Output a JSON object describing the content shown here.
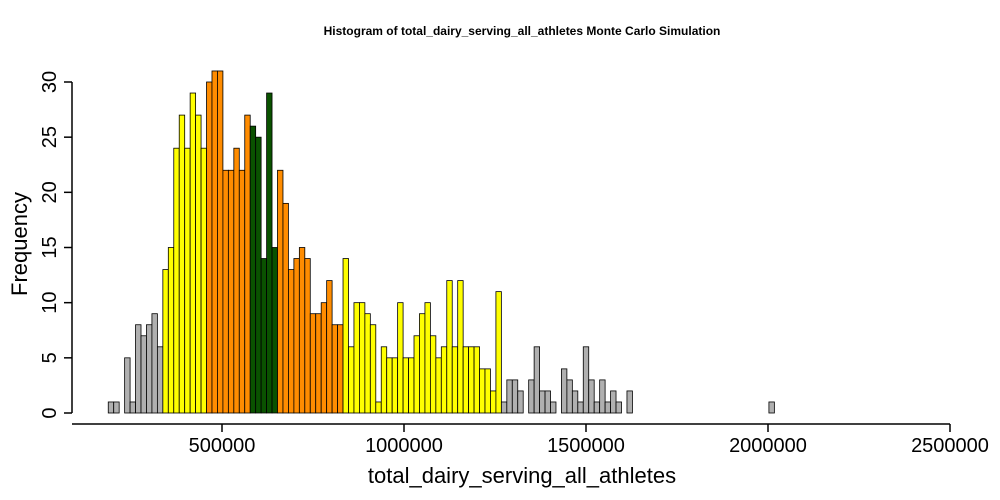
{
  "chart_data": {
    "type": "bar",
    "title": "Histogram of  total_dairy_serving_all_athletes  Monte Carlo Simulation",
    "xlabel": "total_dairy_serving_all_athletes",
    "ylabel": "Frequency",
    "xlim": [
      175000,
      2460000
    ],
    "ylim": [
      0,
      30
    ],
    "x_ticks": [
      500000,
      1000000,
      1500000,
      2000000,
      2500000
    ],
    "x_tick_labels": [
      "500000",
      "1000000",
      "1500000",
      "2000000",
      "2500000"
    ],
    "y_ticks": [
      0,
      5,
      10,
      15,
      20,
      25,
      30
    ],
    "y_tick_labels": [
      "0",
      "5",
      "10",
      "15",
      "20",
      "25",
      "30"
    ],
    "bin_start": 187500,
    "bin_width": 15000,
    "values": [
      1,
      1,
      0,
      5,
      1,
      8,
      7,
      8,
      9,
      6,
      13,
      15,
      24,
      27,
      24,
      29,
      27,
      24,
      30,
      31,
      31,
      22,
      22,
      24,
      22,
      27,
      26,
      25,
      14,
      29,
      15,
      22,
      19,
      13,
      14,
      15,
      14,
      9,
      9,
      10,
      12,
      8,
      8,
      14,
      6,
      10,
      10,
      9,
      8,
      1,
      6,
      5,
      5,
      10,
      5,
      5,
      7,
      9,
      10,
      7,
      5,
      6,
      12,
      6,
      12,
      6,
      6,
      6,
      4,
      4,
      2,
      11,
      1,
      3,
      3,
      2,
      0,
      3,
      6,
      2,
      2,
      1,
      0,
      4,
      3,
      2,
      1,
      6,
      3,
      1,
      3,
      1,
      2,
      1,
      0,
      2,
      0,
      0,
      0,
      0,
      0,
      0,
      0,
      0,
      0,
      0,
      0,
      0,
      0,
      0,
      0,
      0,
      0,
      0,
      0,
      0,
      0,
      0,
      0,
      0,
      0,
      1
    ],
    "colors": {
      "gray": "#b0b0b0",
      "yellow": "#ffff00",
      "orange": "#ff8c00",
      "green": "#0a5200"
    },
    "color_ranges": [
      {
        "color": "gray",
        "from": 0,
        "to": 10
      },
      {
        "color": "yellow",
        "from": 10,
        "to": 18
      },
      {
        "color": "orange",
        "from": 18,
        "to": 26
      },
      {
        "color": "green",
        "from": 26,
        "to": 31
      },
      {
        "color": "orange",
        "from": 31,
        "to": 43
      },
      {
        "color": "yellow",
        "from": 43,
        "to": 72
      },
      {
        "color": "gray",
        "from": 72,
        "to": 151
      }
    ]
  }
}
